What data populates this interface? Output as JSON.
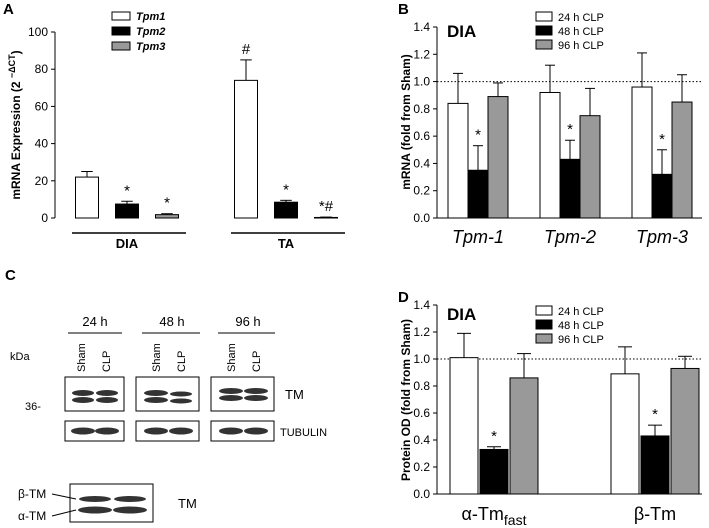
{
  "chart_data": [
    {
      "type": "bar",
      "panel": "A",
      "y_label": [
        "mRNA Expression (2 ",
        "−ΔCT",
        ")"
      ],
      "categories": [
        "DIA",
        "TA"
      ],
      "series": [
        {
          "name": "Tpm1",
          "color": "#ffffff",
          "values": [
            22,
            74
          ],
          "errors": [
            3,
            11
          ],
          "annotations": [
            null,
            "#"
          ]
        },
        {
          "name": "Tpm2",
          "color": "#000000",
          "values": [
            7.5,
            8.5
          ],
          "errors": [
            1.5,
            1
          ],
          "annotations": [
            "*",
            "*"
          ]
        },
        {
          "name": "Tpm3",
          "color": "#999999",
          "values": [
            1.8,
            0.3
          ],
          "errors": [
            0.5,
            0.2
          ],
          "annotations": [
            "*",
            "*#"
          ]
        }
      ],
      "ylim": [
        0,
        100
      ],
      "yticks": [
        0,
        20,
        40,
        60,
        80,
        100
      ]
    },
    {
      "type": "bar",
      "panel": "B",
      "title": "DIA",
      "y_label": [
        "mRNA (fold from Sham)"
      ],
      "categories": [
        "Tpm-1",
        "Tpm-2",
        "Tpm-3"
      ],
      "series": [
        {
          "name": "24 h CLP",
          "color": "#ffffff",
          "values": [
            0.84,
            0.92,
            0.96
          ],
          "errors": [
            0.22,
            0.2,
            0.25
          ],
          "annotations": [
            null,
            null,
            null
          ]
        },
        {
          "name": "48 h CLP",
          "color": "#000000",
          "values": [
            0.35,
            0.43,
            0.32
          ],
          "errors": [
            0.18,
            0.14,
            0.18
          ],
          "annotations": [
            "*",
            "*",
            "*"
          ]
        },
        {
          "name": "96 h CLP",
          "color": "#999999",
          "values": [
            0.89,
            0.75,
            0.85
          ],
          "errors": [
            0.1,
            0.2,
            0.2
          ],
          "annotations": [
            null,
            null,
            null
          ]
        }
      ],
      "ylim": [
        0,
        1.4
      ],
      "yticks": [
        {
          "value": 0,
          "label": "0.0"
        },
        0.2,
        0.4,
        0.6,
        0.8,
        {
          "value": 1,
          "label": "1.0"
        },
        1.2,
        1.4
      ],
      "reference_line": 1
    },
    {
      "type": "bar",
      "panel": "D",
      "title": "DIA",
      "y_label": [
        "Protein OD (fold from Sham)"
      ],
      "categories": [
        "α-Tm",
        "β-Tm"
      ],
      "category_subscripts": [
        "fast",
        null
      ],
      "series": [
        {
          "name": "24 h CLP",
          "color": "#ffffff",
          "values": [
            1.01,
            0.89
          ],
          "errors": [
            0.18,
            0.2
          ],
          "annotations": [
            null,
            null
          ]
        },
        {
          "name": "48 h CLP",
          "color": "#000000",
          "values": [
            0.33,
            0.43
          ],
          "errors": [
            0.02,
            0.08
          ],
          "annotations": [
            "*",
            "*"
          ]
        },
        {
          "name": "96 h CLP",
          "color": "#999999",
          "values": [
            0.86,
            0.93
          ],
          "errors": [
            0.18,
            0.09
          ],
          "annotations": [
            null,
            null
          ]
        }
      ],
      "ylim": [
        0,
        1.4
      ],
      "yticks": [
        {
          "value": 0,
          "label": "0.0"
        },
        0.2,
        0.4,
        0.6,
        0.8,
        {
          "value": 1,
          "label": "1.0"
        },
        1.2,
        1.4
      ],
      "reference_line": 1
    }
  ],
  "blot": {
    "panel": "C",
    "timepoints": [
      "24 h",
      "48 h",
      "96 h"
    ],
    "lanes": [
      "Sham",
      "CLP"
    ],
    "kda": "kDa",
    "marker": "36-",
    "tm_label": "TM",
    "tubulin_label": "TUBULIN",
    "bands": [
      "β-TM",
      "α-TM"
    ],
    "bottom_label": "TM"
  }
}
